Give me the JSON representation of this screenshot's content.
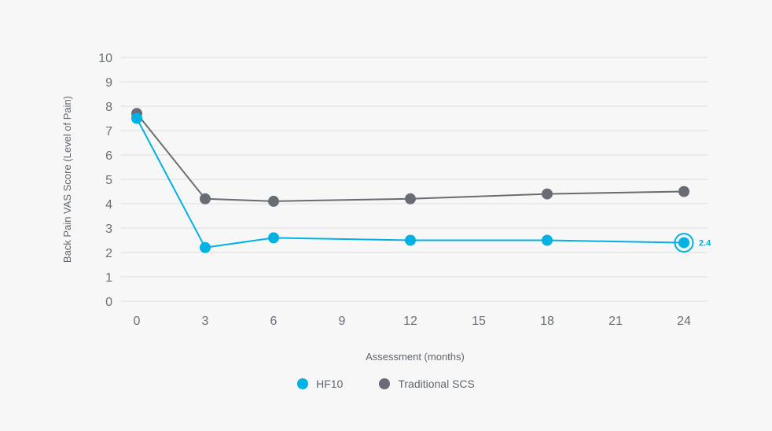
{
  "chart_data": {
    "type": "line",
    "xlabel": "Assessment (months)",
    "ylabel": "Back Pain VAS Score (Level of Pain)",
    "xlim": [
      0,
      24
    ],
    "ylim": [
      0,
      10
    ],
    "x_ticks": [
      0,
      3,
      6,
      9,
      12,
      15,
      18,
      21,
      24
    ],
    "y_ticks": [
      0,
      1,
      2,
      3,
      4,
      5,
      6,
      7,
      8,
      9,
      10
    ],
    "grid": true,
    "legend_placement": "bottom",
    "series": [
      {
        "name": "HF10",
        "color": "#00b1e3",
        "x": [
          0,
          3,
          6,
          12,
          18,
          24
        ],
        "values": [
          7.5,
          2.2,
          2.6,
          2.5,
          2.5,
          2.4
        ]
      },
      {
        "name": "Traditional SCS",
        "color": "#686d75",
        "x": [
          0,
          3,
          6,
          12,
          18,
          24
        ],
        "values": [
          7.7,
          4.2,
          4.1,
          4.2,
          4.4,
          4.5
        ]
      }
    ],
    "annotations": [
      {
        "series": "HF10",
        "x": 24,
        "text": "2.4"
      }
    ]
  }
}
